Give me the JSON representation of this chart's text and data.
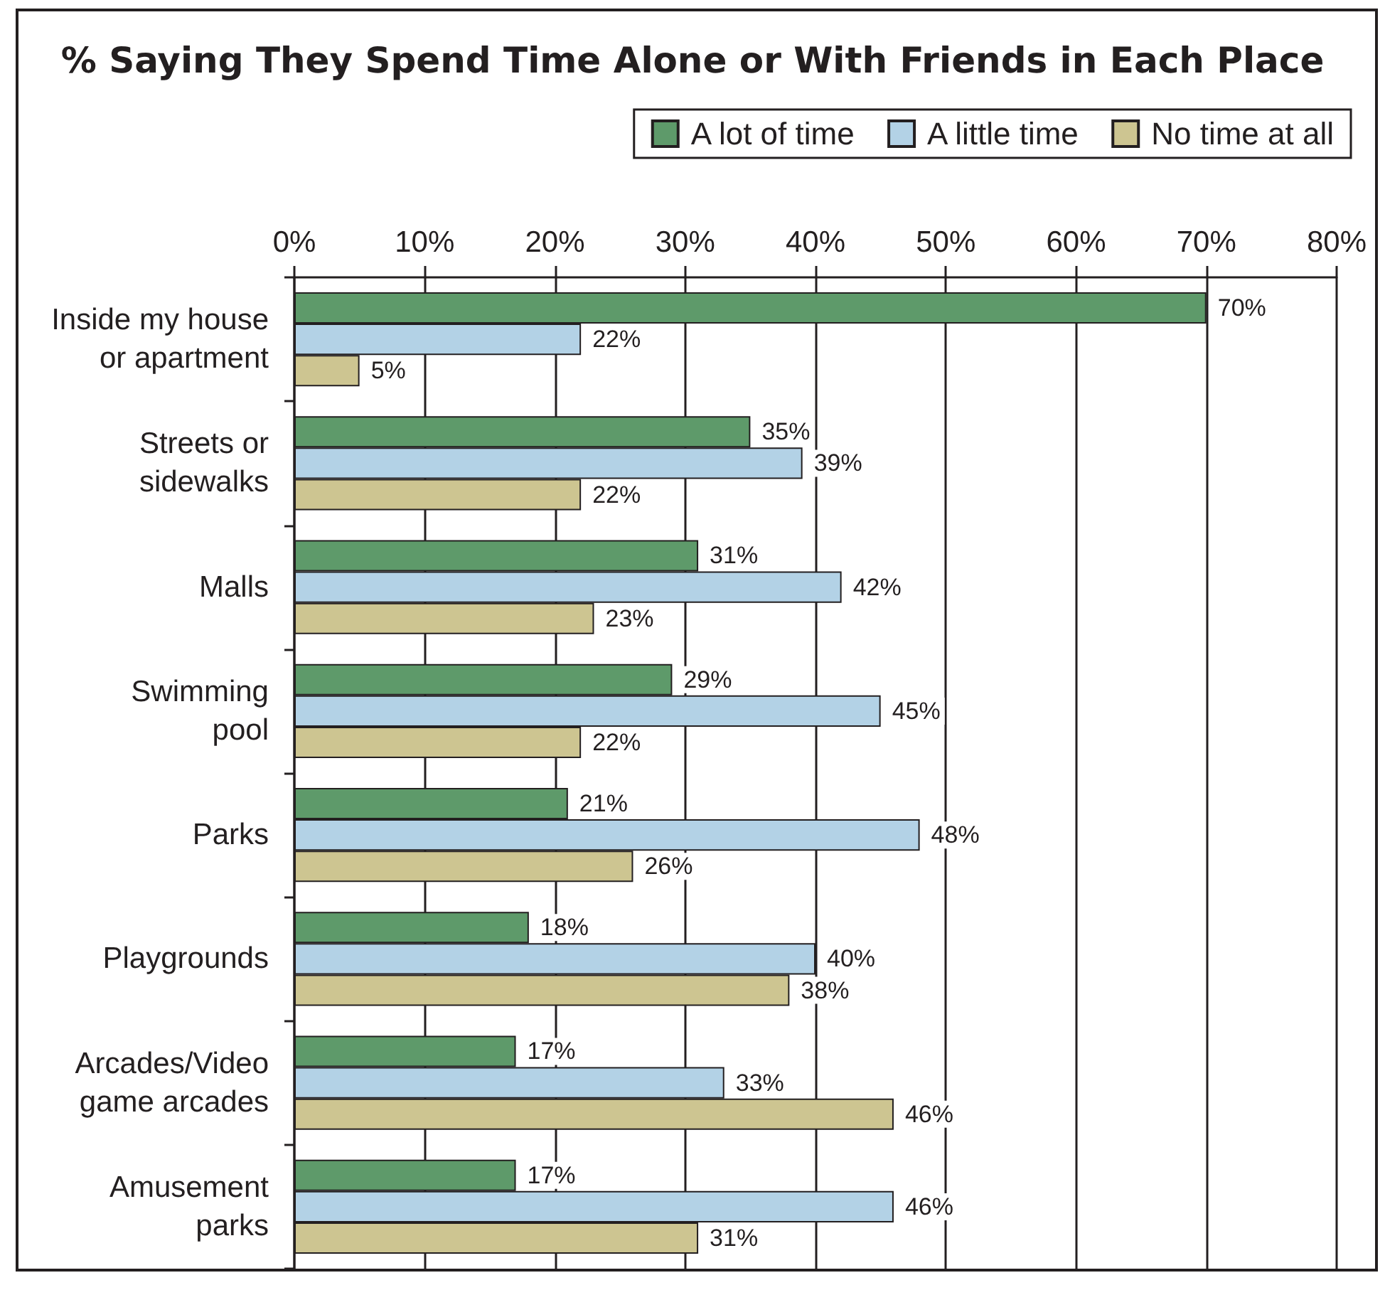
{
  "chart_data": {
    "type": "bar",
    "orientation": "horizontal",
    "title": "% Saying They Spend Time Alone or With Friends in Each Place",
    "categories": [
      "Inside my house\nor apartment",
      "Streets or\nsidewalks",
      "Malls",
      "Swimming\npool",
      "Parks",
      "Playgrounds",
      "Arcades/Video\ngame arcades",
      "Amusement\nparks"
    ],
    "series": [
      {
        "name": "A lot of time",
        "color": "#5e9a6a",
        "values": [
          70,
          35,
          31,
          29,
          21,
          18,
          17,
          17
        ],
        "value_labels": [
          "70%",
          "35%",
          "31%",
          "29%",
          "21%",
          "18%",
          "17%",
          "17%"
        ]
      },
      {
        "name": "A little time",
        "color": "#b3d2e6",
        "values": [
          22,
          39,
          42,
          45,
          48,
          40,
          33,
          46
        ],
        "value_labels": [
          "22%",
          "39%",
          "42%",
          "45%",
          "48%",
          "40%",
          "33%",
          "46%"
        ]
      },
      {
        "name": "No time at all",
        "color": "#cdc591",
        "values": [
          5,
          22,
          23,
          22,
          26,
          38,
          46,
          31
        ],
        "value_labels": [
          "5%",
          "22%",
          "23%",
          "22%",
          "26%",
          "38%",
          "46%",
          "31%"
        ]
      }
    ],
    "xlim": [
      0,
      80
    ],
    "xticks": [
      {
        "value": 0,
        "label": "0%"
      },
      {
        "value": 10,
        "label": "10%"
      },
      {
        "value": 20,
        "label": "20%"
      },
      {
        "value": 30,
        "label": "30%"
      },
      {
        "value": 40,
        "label": "40%"
      },
      {
        "value": 50,
        "label": "50%"
      },
      {
        "value": 60,
        "label": "60%"
      },
      {
        "value": 70,
        "label": "70%"
      },
      {
        "value": 80,
        "label": "80%"
      }
    ],
    "grid": "x",
    "legend": "top right"
  }
}
